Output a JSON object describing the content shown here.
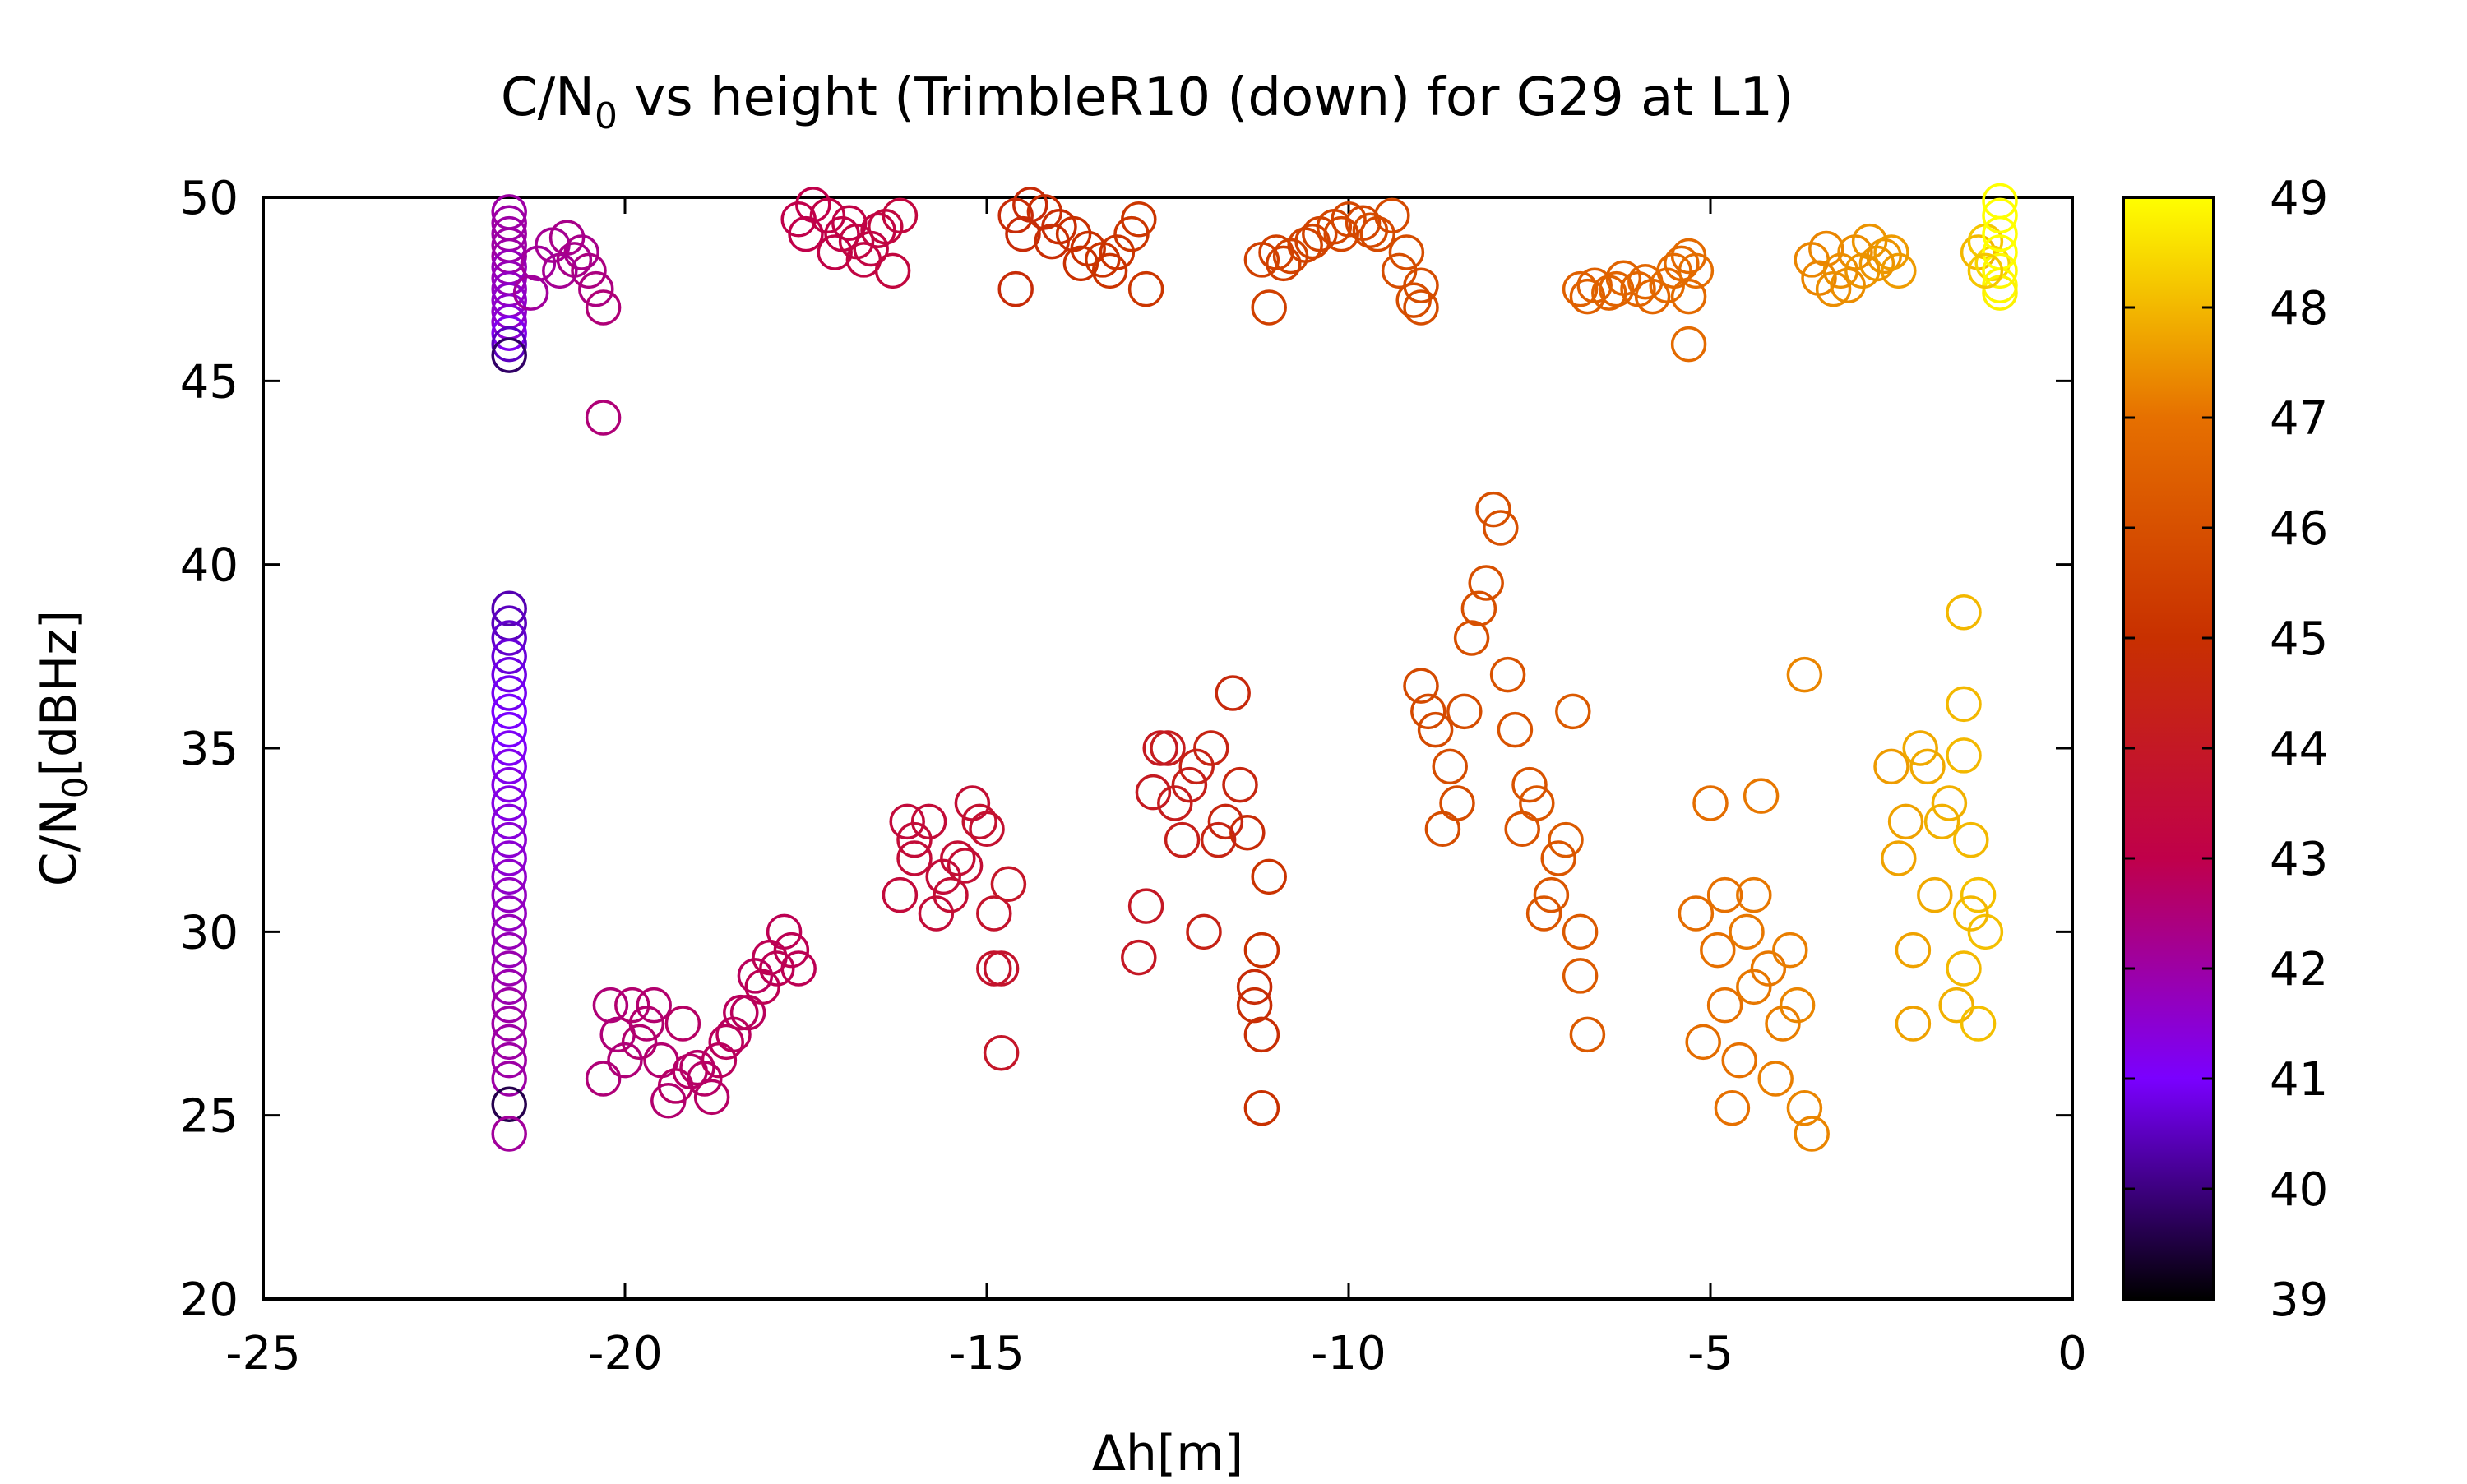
{
  "chart_data": {
    "type": "scatter",
    "title_main": "C/N",
    "title_sub": "0",
    "title_rest": " vs height (TrimbleR10 (down) for G29 at L1)",
    "xlabel": "Δh[m]",
    "ylabel_main": "C/N",
    "ylabel_sub": "0",
    "ylabel_rest": "[dBHz]",
    "xlim": [
      -25,
      0
    ],
    "ylim": [
      20,
      50
    ],
    "x_ticks": [
      -25,
      -20,
      -15,
      -10,
      -5,
      0
    ],
    "y_ticks": [
      20,
      25,
      30,
      35,
      40,
      45,
      50
    ],
    "colorbar": {
      "range": [
        39,
        49
      ],
      "ticks": [
        39,
        40,
        41,
        42,
        43,
        44,
        45,
        46,
        47,
        48,
        49
      ],
      "palette": [
        "#000000",
        "#7a00ff",
        "#c0004a",
        "#c83000",
        "#e67000",
        "#ffff00"
      ]
    },
    "marker": "open-circle",
    "groups": [
      {
        "x": -21.6,
        "y": [
          49.6,
          49.3,
          49.0,
          48.7,
          48.4,
          48.1,
          47.8,
          47.5,
          47.2,
          46.9,
          46.6,
          46.3,
          46.0,
          45.7
        ],
        "color": [
          42.0,
          42.0,
          42.0,
          42.0,
          42.0,
          41.8,
          41.8,
          41.7,
          41.6,
          41.6,
          41.5,
          41.2,
          40.5,
          39.8
        ]
      },
      {
        "x": -21.6,
        "y": [
          38.8,
          38.4,
          38.0,
          37.5,
          37.0,
          36.5,
          36.0,
          35.5,
          35.0,
          34.5,
          34.0,
          33.5,
          33.0,
          32.5,
          32.0,
          31.5,
          31.0,
          30.5,
          30.0,
          29.5,
          29.0,
          28.5,
          28.0,
          27.5,
          27.0,
          26.5,
          26.0,
          25.3,
          24.5
        ],
        "color": [
          40.4,
          40.5,
          40.6,
          40.7,
          40.8,
          40.9,
          41.0,
          41.0,
          41.1,
          41.2,
          41.3,
          41.3,
          41.4,
          41.5,
          41.5,
          41.6,
          41.7,
          41.7,
          41.8,
          41.8,
          41.9,
          41.9,
          42.0,
          42.0,
          42.0,
          42.0,
          42.0,
          39.6,
          42.1
        ]
      },
      {
        "x": [
          -21.2,
          -21.0,
          -20.8,
          -20.6,
          -20.5,
          -20.4,
          -20.3,
          -21.3,
          -20.9,
          -20.7,
          -20.3
        ],
        "y": [
          48.2,
          48.7,
          48.9,
          48.5,
          48.0,
          47.5,
          47.0,
          47.4,
          48.0,
          48.3,
          44.0
        ],
        "color": [
          42.1,
          42.2,
          42.3,
          42.3,
          42.4,
          42.4,
          42.5,
          42.1,
          42.2,
          42.3,
          42.5
        ]
      },
      {
        "x": [
          -17.6,
          -17.4,
          -17.2,
          -17.0,
          -16.8,
          -16.6,
          -16.4,
          -16.2,
          -17.5,
          -17.1,
          -16.7,
          -16.3,
          -16.9,
          -16.5
        ],
        "y": [
          49.4,
          49.8,
          49.5,
          49.0,
          48.8,
          48.6,
          49.2,
          49.5,
          49.0,
          48.5,
          48.3,
          48.0,
          49.3,
          49.1
        ],
        "color": [
          43.0,
          43.0,
          43.1,
          43.1,
          43.2,
          43.2,
          43.3,
          43.3,
          43.0,
          43.1,
          43.2,
          43.3,
          43.1,
          43.2
        ]
      },
      {
        "x": [
          -14.6,
          -14.4,
          -14.2,
          -14.0,
          -13.8,
          -13.6,
          -13.4,
          -13.2,
          -13.0,
          -12.9,
          -14.5,
          -14.1,
          -13.7,
          -13.3,
          -12.8,
          -14.6
        ],
        "y": [
          49.5,
          49.8,
          49.6,
          49.2,
          49.0,
          48.6,
          48.3,
          48.5,
          49.0,
          49.4,
          49.0,
          48.8,
          48.2,
          48.0,
          47.5,
          47.5
        ],
        "color": [
          44.8,
          44.8,
          44.9,
          44.9,
          45.0,
          45.0,
          45.1,
          45.1,
          45.2,
          45.2,
          44.8,
          44.9,
          45.0,
          45.1,
          45.2,
          44.8
        ]
      },
      {
        "x": [
          -11.2,
          -11.0,
          -10.8,
          -10.6,
          -10.4,
          -10.2,
          -10.0,
          -9.8,
          -9.6,
          -9.4,
          -9.2,
          -9.0,
          -10.9,
          -10.5,
          -10.1,
          -9.7,
          -9.3,
          -11.1,
          -9.1,
          -9.0
        ],
        "y": [
          48.3,
          48.5,
          48.4,
          48.7,
          49.0,
          49.2,
          49.4,
          49.3,
          49.0,
          49.5,
          48.5,
          47.6,
          48.2,
          48.8,
          49.0,
          49.1,
          48.0,
          47.0,
          47.2,
          47.0
        ],
        "color": [
          45.5,
          45.5,
          45.6,
          45.6,
          45.6,
          45.7,
          45.7,
          45.7,
          45.8,
          45.8,
          45.9,
          45.9,
          45.5,
          45.6,
          45.7,
          45.8,
          45.9,
          45.5,
          45.9,
          45.9
        ]
      },
      {
        "x": [
          -6.8,
          -6.6,
          -6.4,
          -6.2,
          -6.0,
          -5.8,
          -5.6,
          -5.4,
          -5.3,
          -5.2,
          -6.7,
          -6.3,
          -5.9,
          -5.5,
          -5.3
        ],
        "y": [
          47.5,
          47.6,
          47.4,
          47.8,
          47.5,
          47.3,
          47.6,
          48.2,
          48.4,
          48.0,
          47.3,
          47.5,
          47.7,
          48.0,
          47.3
        ],
        "color": [
          46.5,
          46.5,
          46.6,
          46.6,
          46.7,
          46.7,
          46.8,
          46.8,
          46.8,
          46.9,
          46.5,
          46.6,
          46.7,
          46.8,
          46.8
        ]
      },
      {
        "x": -5.3,
        "y": [
          46.0
        ],
        "color": [
          46.8
        ]
      },
      {
        "x": [
          -3.6,
          -3.4,
          -3.2,
          -3.0,
          -2.8,
          -2.6,
          -2.4,
          -3.5,
          -3.1,
          -2.7,
          -2.5,
          -3.3,
          -2.9
        ],
        "y": [
          48.3,
          48.6,
          48.0,
          48.5,
          48.8,
          48.4,
          48.0,
          47.8,
          47.6,
          48.2,
          48.5,
          47.5,
          48.0
        ],
        "color": [
          47.3,
          47.3,
          47.4,
          47.4,
          47.5,
          47.5,
          47.6,
          47.3,
          47.4,
          47.5,
          47.6,
          47.4,
          47.5
        ]
      },
      {
        "x": [
          -1.3,
          -1.2,
          -1.1,
          -1.0,
          -1.0,
          -1.0,
          -1.0,
          -1.0,
          -1.0,
          -1.0,
          -1.2
        ],
        "y": [
          48.5,
          48.8,
          48.2,
          49.9,
          49.5,
          49.0,
          48.5,
          48.0,
          47.6,
          47.4,
          48.0
        ],
        "color": [
          48.0,
          48.2,
          48.4,
          49.0,
          49.0,
          49.0,
          49.0,
          48.9,
          48.9,
          48.8,
          48.2
        ]
      },
      {
        "x": [
          -20.3,
          -20.1,
          -19.9,
          -19.7,
          -19.5,
          -19.3,
          -19.1,
          -18.9,
          -18.7,
          -18.5,
          -18.3,
          -18.1,
          -17.9,
          -17.7,
          -20.2,
          -19.8,
          -19.4,
          -19.0,
          -18.6,
          -18.2,
          -17.8,
          -20.0,
          -19.6,
          -19.2,
          -18.8,
          -18.4,
          -18.0,
          -17.6
        ],
        "y": [
          26.0,
          27.2,
          28.0,
          27.5,
          26.5,
          25.8,
          26.2,
          26.0,
          26.5,
          27.2,
          27.8,
          28.5,
          29.0,
          29.5,
          28.0,
          27.0,
          25.4,
          26.3,
          27.0,
          28.8,
          30.0,
          26.5,
          28.0,
          27.5,
          25.5,
          27.8,
          29.3,
          29.0
        ],
        "color": [
          42.5,
          42.5,
          42.6,
          42.6,
          42.6,
          42.7,
          42.7,
          42.7,
          42.8,
          42.8,
          42.8,
          42.9,
          42.9,
          42.9,
          42.5,
          42.6,
          42.6,
          42.7,
          42.8,
          42.8,
          42.9,
          42.5,
          42.6,
          42.7,
          42.7,
          42.8,
          42.9,
          42.9
        ]
      },
      {
        "x": [
          -16.2,
          -16.0,
          -15.8,
          -15.6,
          -15.4,
          -15.2,
          -15.0,
          -14.9,
          -14.8,
          -14.7,
          -16.1,
          -15.7,
          -15.3,
          -14.9,
          -16.0,
          -15.5,
          -15.1,
          -14.8
        ],
        "y": [
          31.0,
          32.5,
          33.0,
          31.5,
          32.0,
          33.5,
          32.8,
          30.5,
          29.0,
          31.3,
          33.0,
          30.5,
          31.8,
          29.0,
          32.0,
          31.0,
          33.0,
          26.7
        ],
        "color": [
          43.4,
          43.5,
          43.5,
          43.5,
          43.6,
          43.6,
          43.7,
          43.8,
          43.8,
          43.9,
          43.4,
          43.5,
          43.6,
          43.8,
          43.5,
          43.6,
          43.7,
          43.9
        ]
      },
      {
        "x": [
          -12.9,
          -12.7,
          -12.5,
          -12.3,
          -12.1,
          -11.9,
          -11.7,
          -11.6,
          -11.4,
          -11.3,
          -11.2,
          -11.1,
          -12.8,
          -12.4,
          -12.0,
          -11.5,
          -11.2,
          -12.6,
          -12.2,
          -11.8,
          -11.3,
          -11.2
        ],
        "y": [
          29.3,
          33.8,
          35.0,
          32.5,
          34.5,
          35.0,
          33.0,
          36.5,
          32.7,
          28.0,
          29.5,
          31.5,
          30.7,
          33.5,
          30.0,
          34.0,
          27.2,
          35.0,
          34.0,
          32.5,
          28.5,
          25.2
        ],
        "color": [
          44.0,
          44.1,
          44.2,
          44.3,
          44.4,
          44.5,
          44.6,
          44.7,
          44.8,
          44.9,
          45.0,
          45.1,
          44.0,
          44.2,
          44.4,
          44.6,
          44.9,
          44.1,
          44.3,
          44.5,
          44.8,
          45.0
        ]
      },
      {
        "x": [
          -9.0,
          -8.8,
          -8.6,
          -8.4,
          -8.2,
          -8.0,
          -7.8,
          -7.6,
          -7.4,
          -7.2,
          -7.0,
          -6.8,
          -6.7,
          -8.9,
          -8.5,
          -8.1,
          -7.7,
          -7.3,
          -6.9,
          -8.7,
          -8.3,
          -7.9,
          -7.5,
          -7.1,
          -6.8
        ],
        "y": [
          36.7,
          35.5,
          34.5,
          36.0,
          38.8,
          41.5,
          37.0,
          32.8,
          33.5,
          31.0,
          32.5,
          30.0,
          27.2,
          36.0,
          33.5,
          39.5,
          35.5,
          30.5,
          36.0,
          32.8,
          38.0,
          41.0,
          34.0,
          32.0,
          28.8
        ],
        "color": [
          45.8,
          45.8,
          45.9,
          45.9,
          46.0,
          46.0,
          46.1,
          46.1,
          46.2,
          46.2,
          46.3,
          46.3,
          46.3,
          45.8,
          45.9,
          46.0,
          46.1,
          46.2,
          46.3,
          45.9,
          46.0,
          46.0,
          46.1,
          46.2,
          46.3
        ]
      },
      {
        "x": [
          -5.2,
          -5.0,
          -4.8,
          -4.6,
          -4.4,
          -4.2,
          -4.0,
          -3.9,
          -3.8,
          -3.7,
          -5.1,
          -4.7,
          -4.3,
          -4.1,
          -4.9,
          -4.5,
          -3.6,
          -4.4,
          -3.7,
          -4.8
        ],
        "y": [
          30.5,
          33.5,
          28.0,
          26.5,
          31.0,
          29.0,
          27.5,
          29.5,
          28.0,
          25.2,
          27.0,
          25.2,
          33.7,
          26.0,
          29.5,
          30.0,
          24.5,
          28.5,
          37.0,
          31.0
        ],
        "color": [
          46.9,
          46.9,
          47.0,
          47.0,
          47.1,
          47.1,
          47.2,
          47.2,
          47.3,
          47.3,
          46.9,
          47.0,
          47.1,
          47.2,
          47.0,
          47.1,
          47.3,
          47.1,
          47.3,
          47.0
        ]
      },
      {
        "x": [
          -2.5,
          -2.3,
          -2.1,
          -1.9,
          -1.7,
          -1.5,
          -1.4,
          -1.3,
          -1.2,
          -2.4,
          -2.0,
          -1.6,
          -1.4,
          -2.2,
          -1.8,
          -1.5,
          -1.3,
          -2.2,
          -1.5,
          -1.5
        ],
        "y": [
          34.5,
          33.0,
          35.0,
          31.0,
          33.5,
          29.0,
          32.5,
          31.0,
          30.0,
          32.0,
          34.5,
          28.0,
          30.5,
          27.5,
          33.0,
          36.2,
          27.5,
          29.5,
          38.7,
          34.8
        ],
        "color": [
          47.6,
          47.7,
          47.8,
          47.8,
          47.9,
          48.0,
          48.0,
          48.1,
          48.1,
          47.7,
          47.8,
          47.9,
          48.0,
          47.7,
          47.9,
          48.0,
          48.1,
          47.7,
          48.0,
          48.0
        ]
      }
    ]
  }
}
